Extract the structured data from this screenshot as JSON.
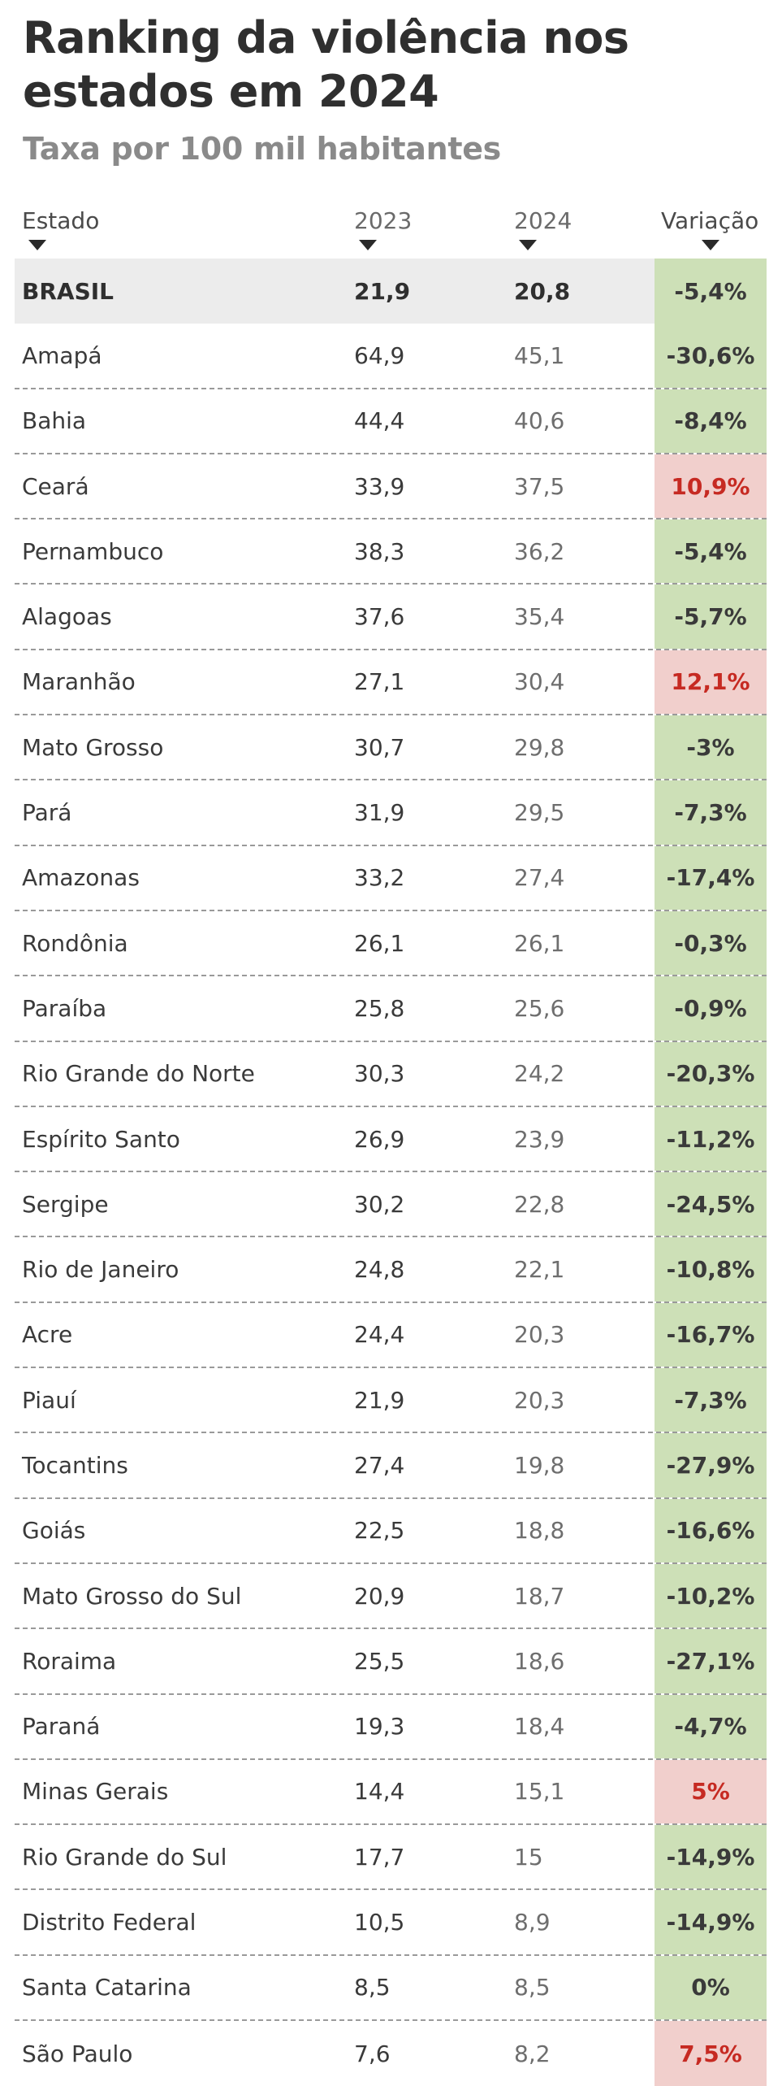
{
  "title": "Ranking da violência nos estados em 2024",
  "subtitle": "Taxa por 100 mil habitantes",
  "colors": {
    "decrease_bg": "#cde0b7",
    "increase_bg": "#f1cfcc",
    "increase_text": "#c62a22",
    "total_row_bg": "#ececec"
  },
  "header": {
    "state": "Estado",
    "y2023": "2023",
    "y2024": "2024",
    "variation": "Variação"
  },
  "rows": [
    {
      "state": "BRASIL",
      "y2023": "21,9",
      "y2024": "20,8",
      "variation": "-5,4%",
      "trend": "down",
      "total": true
    },
    {
      "state": "Amapá",
      "y2023": "64,9",
      "y2024": "45,1",
      "variation": "-30,6%",
      "trend": "down"
    },
    {
      "state": "Bahia",
      "y2023": "44,4",
      "y2024": "40,6",
      "variation": "-8,4%",
      "trend": "down"
    },
    {
      "state": "Ceará",
      "y2023": "33,9",
      "y2024": "37,5",
      "variation": "10,9%",
      "trend": "up"
    },
    {
      "state": "Pernambuco",
      "y2023": "38,3",
      "y2024": "36,2",
      "variation": "-5,4%",
      "trend": "down"
    },
    {
      "state": "Alagoas",
      "y2023": "37,6",
      "y2024": "35,4",
      "variation": "-5,7%",
      "trend": "down"
    },
    {
      "state": "Maranhão",
      "y2023": "27,1",
      "y2024": "30,4",
      "variation": "12,1%",
      "trend": "up"
    },
    {
      "state": "Mato Grosso",
      "y2023": "30,7",
      "y2024": "29,8",
      "variation": "-3%",
      "trend": "down"
    },
    {
      "state": "Pará",
      "y2023": "31,9",
      "y2024": "29,5",
      "variation": "-7,3%",
      "trend": "down"
    },
    {
      "state": "Amazonas",
      "y2023": "33,2",
      "y2024": "27,4",
      "variation": "-17,4%",
      "trend": "down"
    },
    {
      "state": "Rondônia",
      "y2023": "26,1",
      "y2024": "26,1",
      "variation": "-0,3%",
      "trend": "down"
    },
    {
      "state": "Paraíba",
      "y2023": "25,8",
      "y2024": "25,6",
      "variation": "-0,9%",
      "trend": "down"
    },
    {
      "state": "Rio Grande do Norte",
      "y2023": "30,3",
      "y2024": "24,2",
      "variation": "-20,3%",
      "trend": "down"
    },
    {
      "state": "Espírito Santo",
      "y2023": "26,9",
      "y2024": "23,9",
      "variation": "-11,2%",
      "trend": "down"
    },
    {
      "state": "Sergipe",
      "y2023": "30,2",
      "y2024": "22,8",
      "variation": "-24,5%",
      "trend": "down"
    },
    {
      "state": "Rio de Janeiro",
      "y2023": "24,8",
      "y2024": "22,1",
      "variation": "-10,8%",
      "trend": "down"
    },
    {
      "state": "Acre",
      "y2023": "24,4",
      "y2024": "20,3",
      "variation": "-16,7%",
      "trend": "down"
    },
    {
      "state": "Piauí",
      "y2023": "21,9",
      "y2024": "20,3",
      "variation": "-7,3%",
      "trend": "down"
    },
    {
      "state": "Tocantins",
      "y2023": "27,4",
      "y2024": "19,8",
      "variation": "-27,9%",
      "trend": "down"
    },
    {
      "state": "Goiás",
      "y2023": "22,5",
      "y2024": "18,8",
      "variation": "-16,6%",
      "trend": "down"
    },
    {
      "state": "Mato Grosso do Sul",
      "y2023": "20,9",
      "y2024": "18,7",
      "variation": "-10,2%",
      "trend": "down"
    },
    {
      "state": "Roraima",
      "y2023": "25,5",
      "y2024": "18,6",
      "variation": "-27,1%",
      "trend": "down"
    },
    {
      "state": "Paraná",
      "y2023": "19,3",
      "y2024": "18,4",
      "variation": "-4,7%",
      "trend": "down"
    },
    {
      "state": "Minas Gerais",
      "y2023": "14,4",
      "y2024": "15,1",
      "variation": "5%",
      "trend": "up"
    },
    {
      "state": "Rio Grande do Sul",
      "y2023": "17,7",
      "y2024": "15",
      "variation": "-14,9%",
      "trend": "down"
    },
    {
      "state": "Distrito Federal",
      "y2023": "10,5",
      "y2024": "8,9",
      "variation": "-14,9%",
      "trend": "down"
    },
    {
      "state": "Santa Catarina",
      "y2023": "8,5",
      "y2024": "8,5",
      "variation": "0%",
      "trend": "down"
    },
    {
      "state": "São Paulo",
      "y2023": "7,6",
      "y2024": "8,2",
      "variation": "7,5%",
      "trend": "up"
    }
  ]
}
